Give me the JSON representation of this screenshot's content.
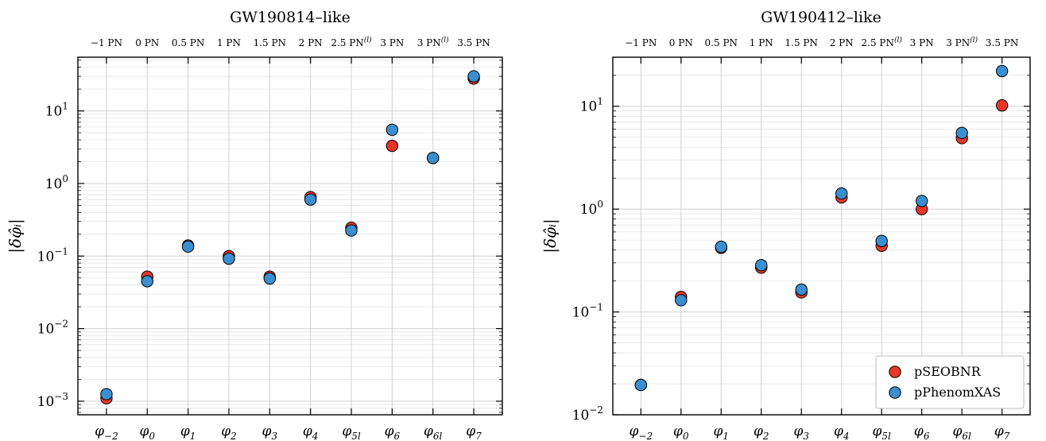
{
  "colors": {
    "pseobnr": "#e8362a",
    "pphenomxas": "#3a8fd0",
    "grid": "#d0d0d0",
    "marker_edge": "#000000"
  },
  "chart_data": [
    {
      "type": "scatter",
      "title": "GW190814–like",
      "ylabel": "|δφ̂ᵢ|",
      "yscale": "log",
      "ylim": [
        0.00065,
        55
      ],
      "yticks": [
        {
          "value": 0.001,
          "base": "10",
          "exp": "−3"
        },
        {
          "value": 0.01,
          "base": "10",
          "exp": "−2"
        },
        {
          "value": 0.1,
          "base": "10",
          "exp": "−1"
        },
        {
          "value": 1,
          "base": "10",
          "exp": "0"
        },
        {
          "value": 10,
          "base": "10",
          "exp": "1"
        }
      ],
      "categories": [
        "φ−2",
        "φ0",
        "φ1",
        "φ2",
        "φ3",
        "φ4",
        "φ5l",
        "φ6",
        "φ6l",
        "φ7"
      ],
      "top_axis_labels": [
        "−1 PN",
        "0 PN",
        "0.5 PN",
        "1 PN",
        "1.5 PN",
        "2 PN",
        "2.5 PN(l)",
        "3 PN",
        "3 PN(l)",
        "3.5 PN"
      ],
      "grid": true,
      "series": [
        {
          "name": "pSEOBNR",
          "values": [
            0.0011,
            0.052,
            0.14,
            0.1,
            0.052,
            0.65,
            0.245,
            3.3,
            2.25,
            28
          ]
        },
        {
          "name": "pPhenomXAS",
          "values": [
            0.00125,
            0.045,
            0.135,
            0.092,
            0.049,
            0.6,
            0.225,
            5.5,
            2.25,
            30
          ]
        }
      ]
    },
    {
      "type": "scatter",
      "title": "GW190412–like",
      "ylabel": "|δφ̂ᵢ|",
      "yscale": "log",
      "ylim": [
        0.01,
        30
      ],
      "yticks": [
        {
          "value": 0.01,
          "base": "10",
          "exp": "−2"
        },
        {
          "value": 0.1,
          "base": "10",
          "exp": "−1"
        },
        {
          "value": 1,
          "base": "10",
          "exp": "0"
        },
        {
          "value": 10,
          "base": "10",
          "exp": "1"
        }
      ],
      "categories": [
        "φ−2",
        "φ0",
        "φ1",
        "φ2",
        "φ3",
        "φ4",
        "φ5l",
        "φ6",
        "φ6l",
        "φ7"
      ],
      "top_axis_labels": [
        "−1 PN",
        "0 PN",
        "0.5 PN",
        "1 PN",
        "1.5 PN",
        "2 PN",
        "2.5 PN(l)",
        "3 PN",
        "3 PN(l)",
        "3.5 PN"
      ],
      "grid": true,
      "legend": {
        "placement": "bottom-right",
        "entries": [
          "pSEOBNR",
          "pPhenomXAS"
        ]
      },
      "series": [
        {
          "name": "pSEOBNR",
          "values": [
            0.0195,
            0.14,
            0.42,
            0.27,
            0.155,
            1.3,
            0.44,
            1.0,
            4.9,
            10.2
          ]
        },
        {
          "name": "pPhenomXAS",
          "values": [
            0.0195,
            0.13,
            0.43,
            0.285,
            0.165,
            1.42,
            0.49,
            1.2,
            5.5,
            22
          ]
        }
      ]
    }
  ]
}
